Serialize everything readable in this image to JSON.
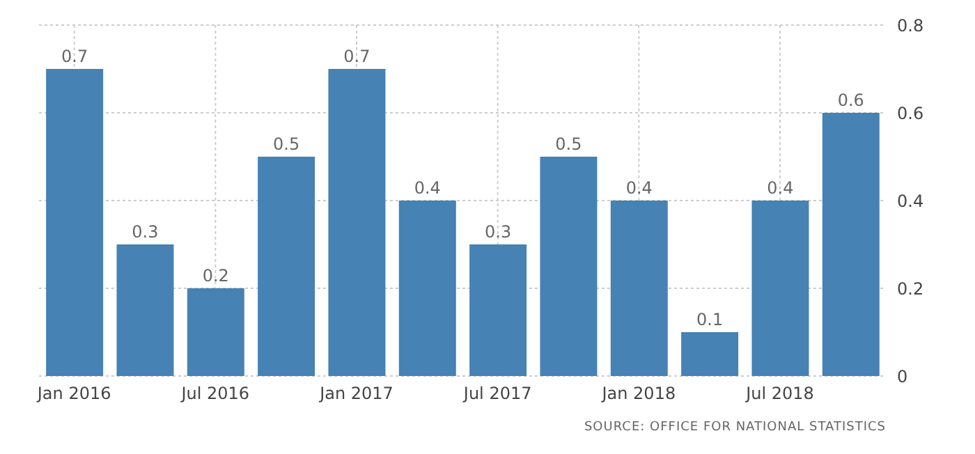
{
  "chart_data": {
    "type": "bar",
    "categories": [
      "Jan 2016",
      null,
      "Jul 2016",
      null,
      "Jan 2017",
      null,
      "Jul 2017",
      null,
      "Jan 2018",
      null,
      "Jul 2018",
      null
    ],
    "values": [
      0.7,
      0.3,
      0.2,
      0.5,
      0.7,
      0.4,
      0.3,
      0.5,
      0.4,
      0.1,
      0.4,
      0.6
    ],
    "color": "#4682b4",
    "ylim": [
      0,
      0.8
    ],
    "yticks": [
      0,
      0.2,
      0.4,
      0.6,
      0.8
    ],
    "grid": true,
    "data_labels": true,
    "annotations": [
      "SOURCE: OFFICE FOR NATIONAL STATISTICS"
    ]
  }
}
